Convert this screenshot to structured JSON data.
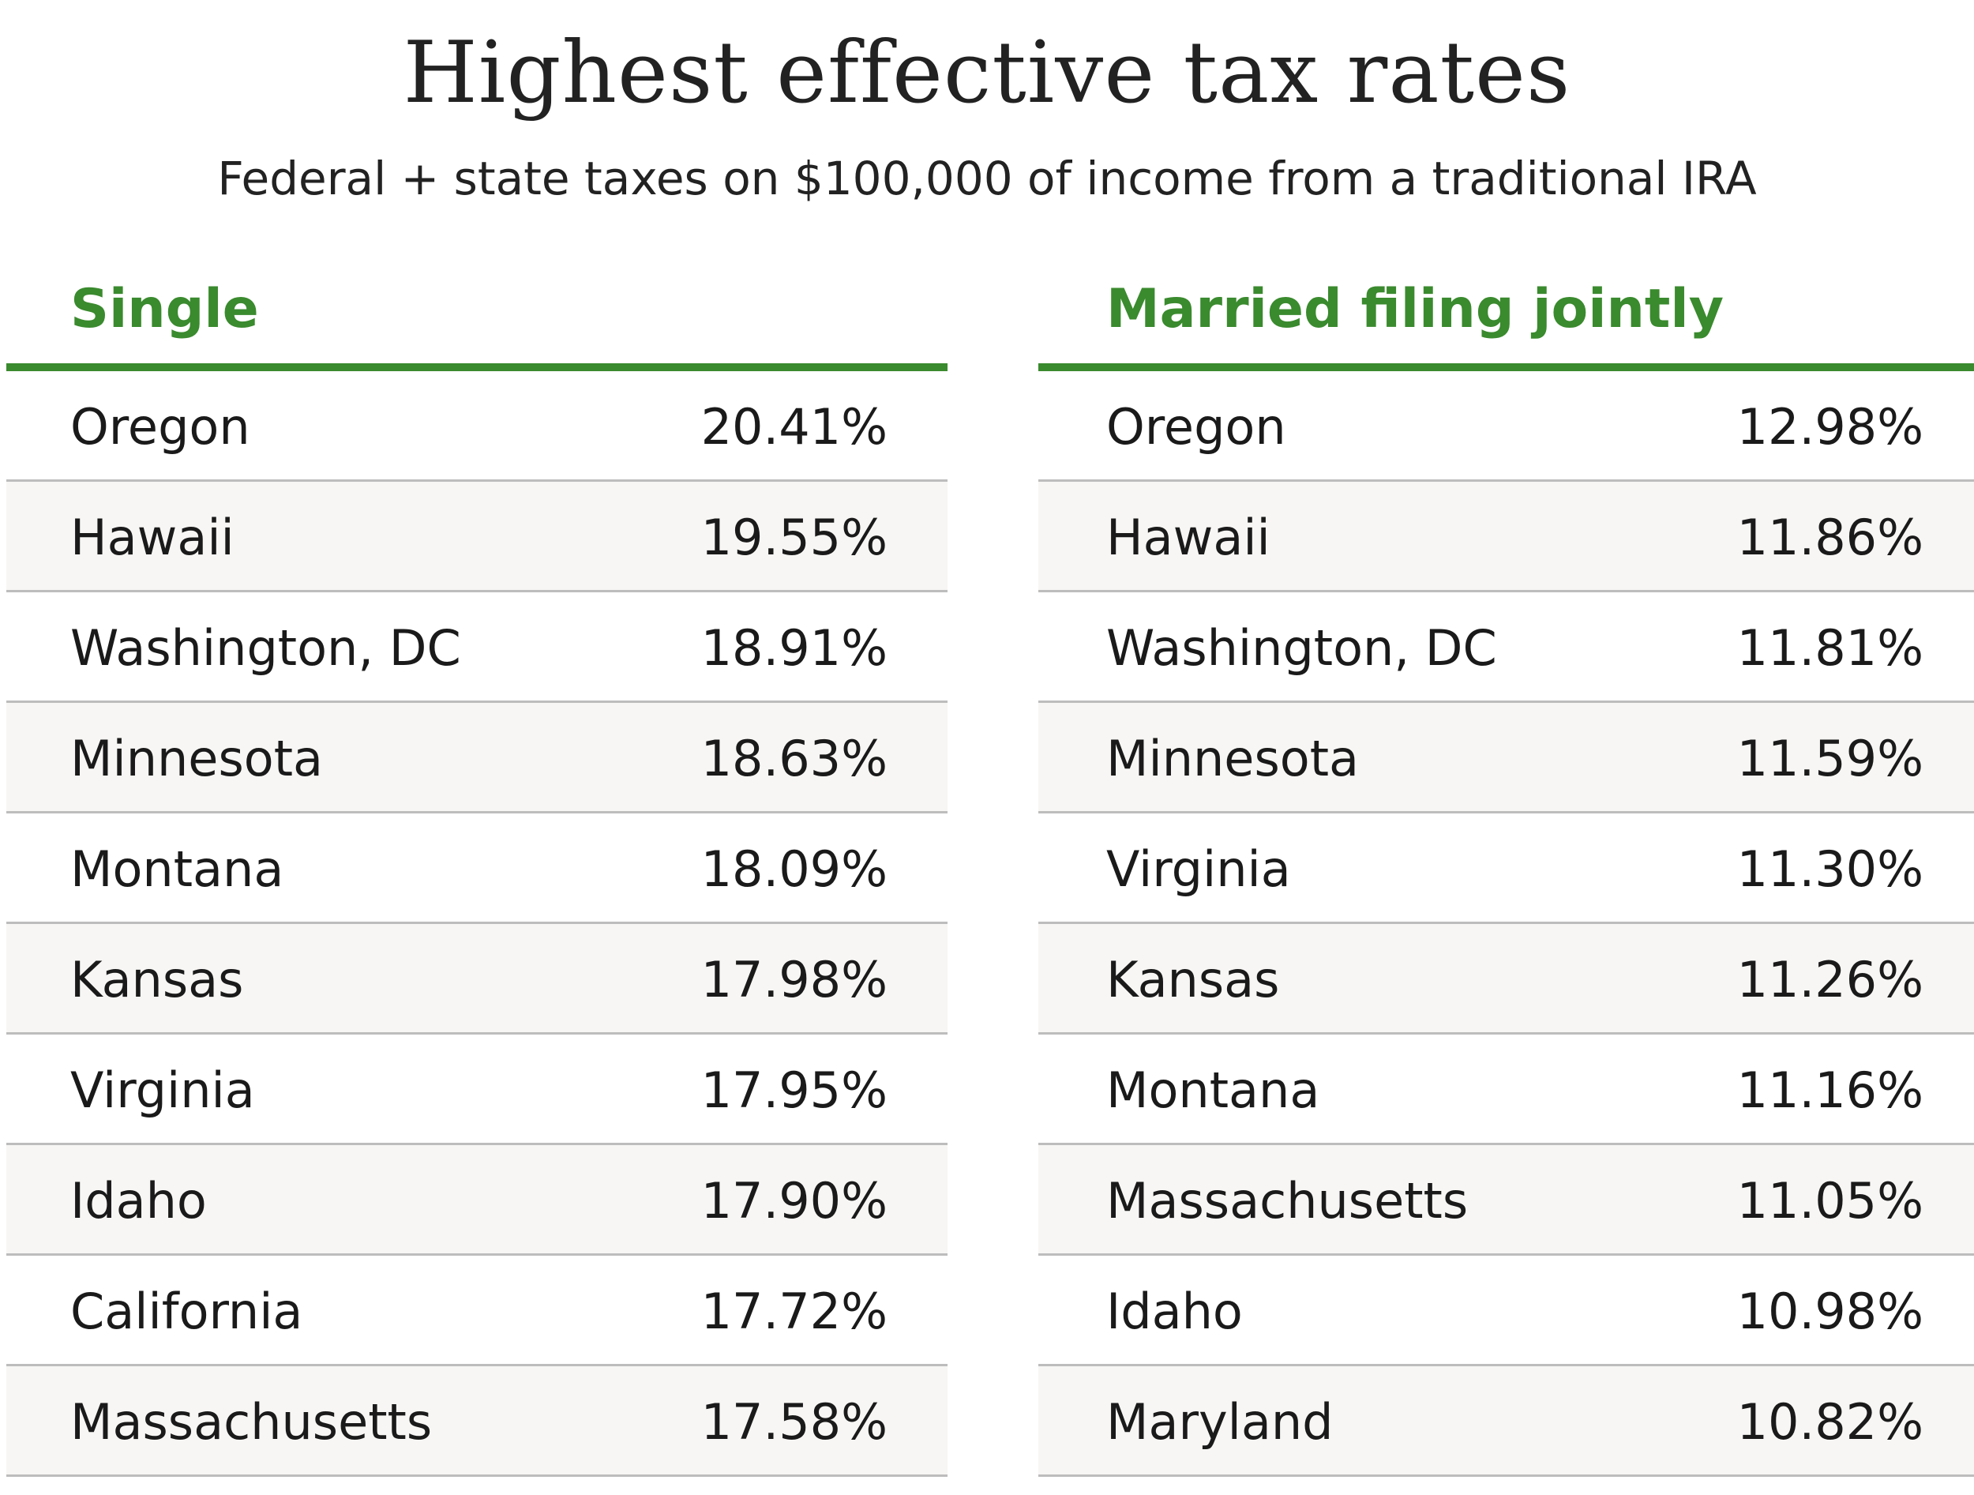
{
  "title": "Highest effective tax rates",
  "subtitle": "Federal + state taxes on $100,000 of income from a traditional IRA",
  "colors": {
    "accent": "#3a8a2e",
    "alt_row": "#f7f6f4",
    "divider": "#bdbdbd"
  },
  "tables": [
    {
      "heading": "Single",
      "rows": [
        {
          "state": "Oregon",
          "rate": "20.41%"
        },
        {
          "state": "Hawaii",
          "rate": "19.55%"
        },
        {
          "state": "Washington, DC",
          "rate": "18.91%"
        },
        {
          "state": "Minnesota",
          "rate": "18.63%"
        },
        {
          "state": "Montana",
          "rate": "18.09%"
        },
        {
          "state": "Kansas",
          "rate": "17.98%"
        },
        {
          "state": "Virginia",
          "rate": "17.95%"
        },
        {
          "state": "Idaho",
          "rate": "17.90%"
        },
        {
          "state": "California",
          "rate": "17.72%"
        },
        {
          "state": "Massachusetts",
          "rate": "17.58%"
        }
      ]
    },
    {
      "heading": "Married filing jointly",
      "rows": [
        {
          "state": "Oregon",
          "rate": "12.98%"
        },
        {
          "state": "Hawaii",
          "rate": "11.86%"
        },
        {
          "state": "Washington, DC",
          "rate": "11.81%"
        },
        {
          "state": "Minnesota",
          "rate": "11.59%"
        },
        {
          "state": "Virginia",
          "rate": "11.30%"
        },
        {
          "state": "Kansas",
          "rate": "11.26%"
        },
        {
          "state": "Montana",
          "rate": "11.16%"
        },
        {
          "state": "Massachusetts",
          "rate": "11.05%"
        },
        {
          "state": "Idaho",
          "rate": "10.98%"
        },
        {
          "state": "Maryland",
          "rate": "10.82%"
        }
      ]
    }
  ]
}
